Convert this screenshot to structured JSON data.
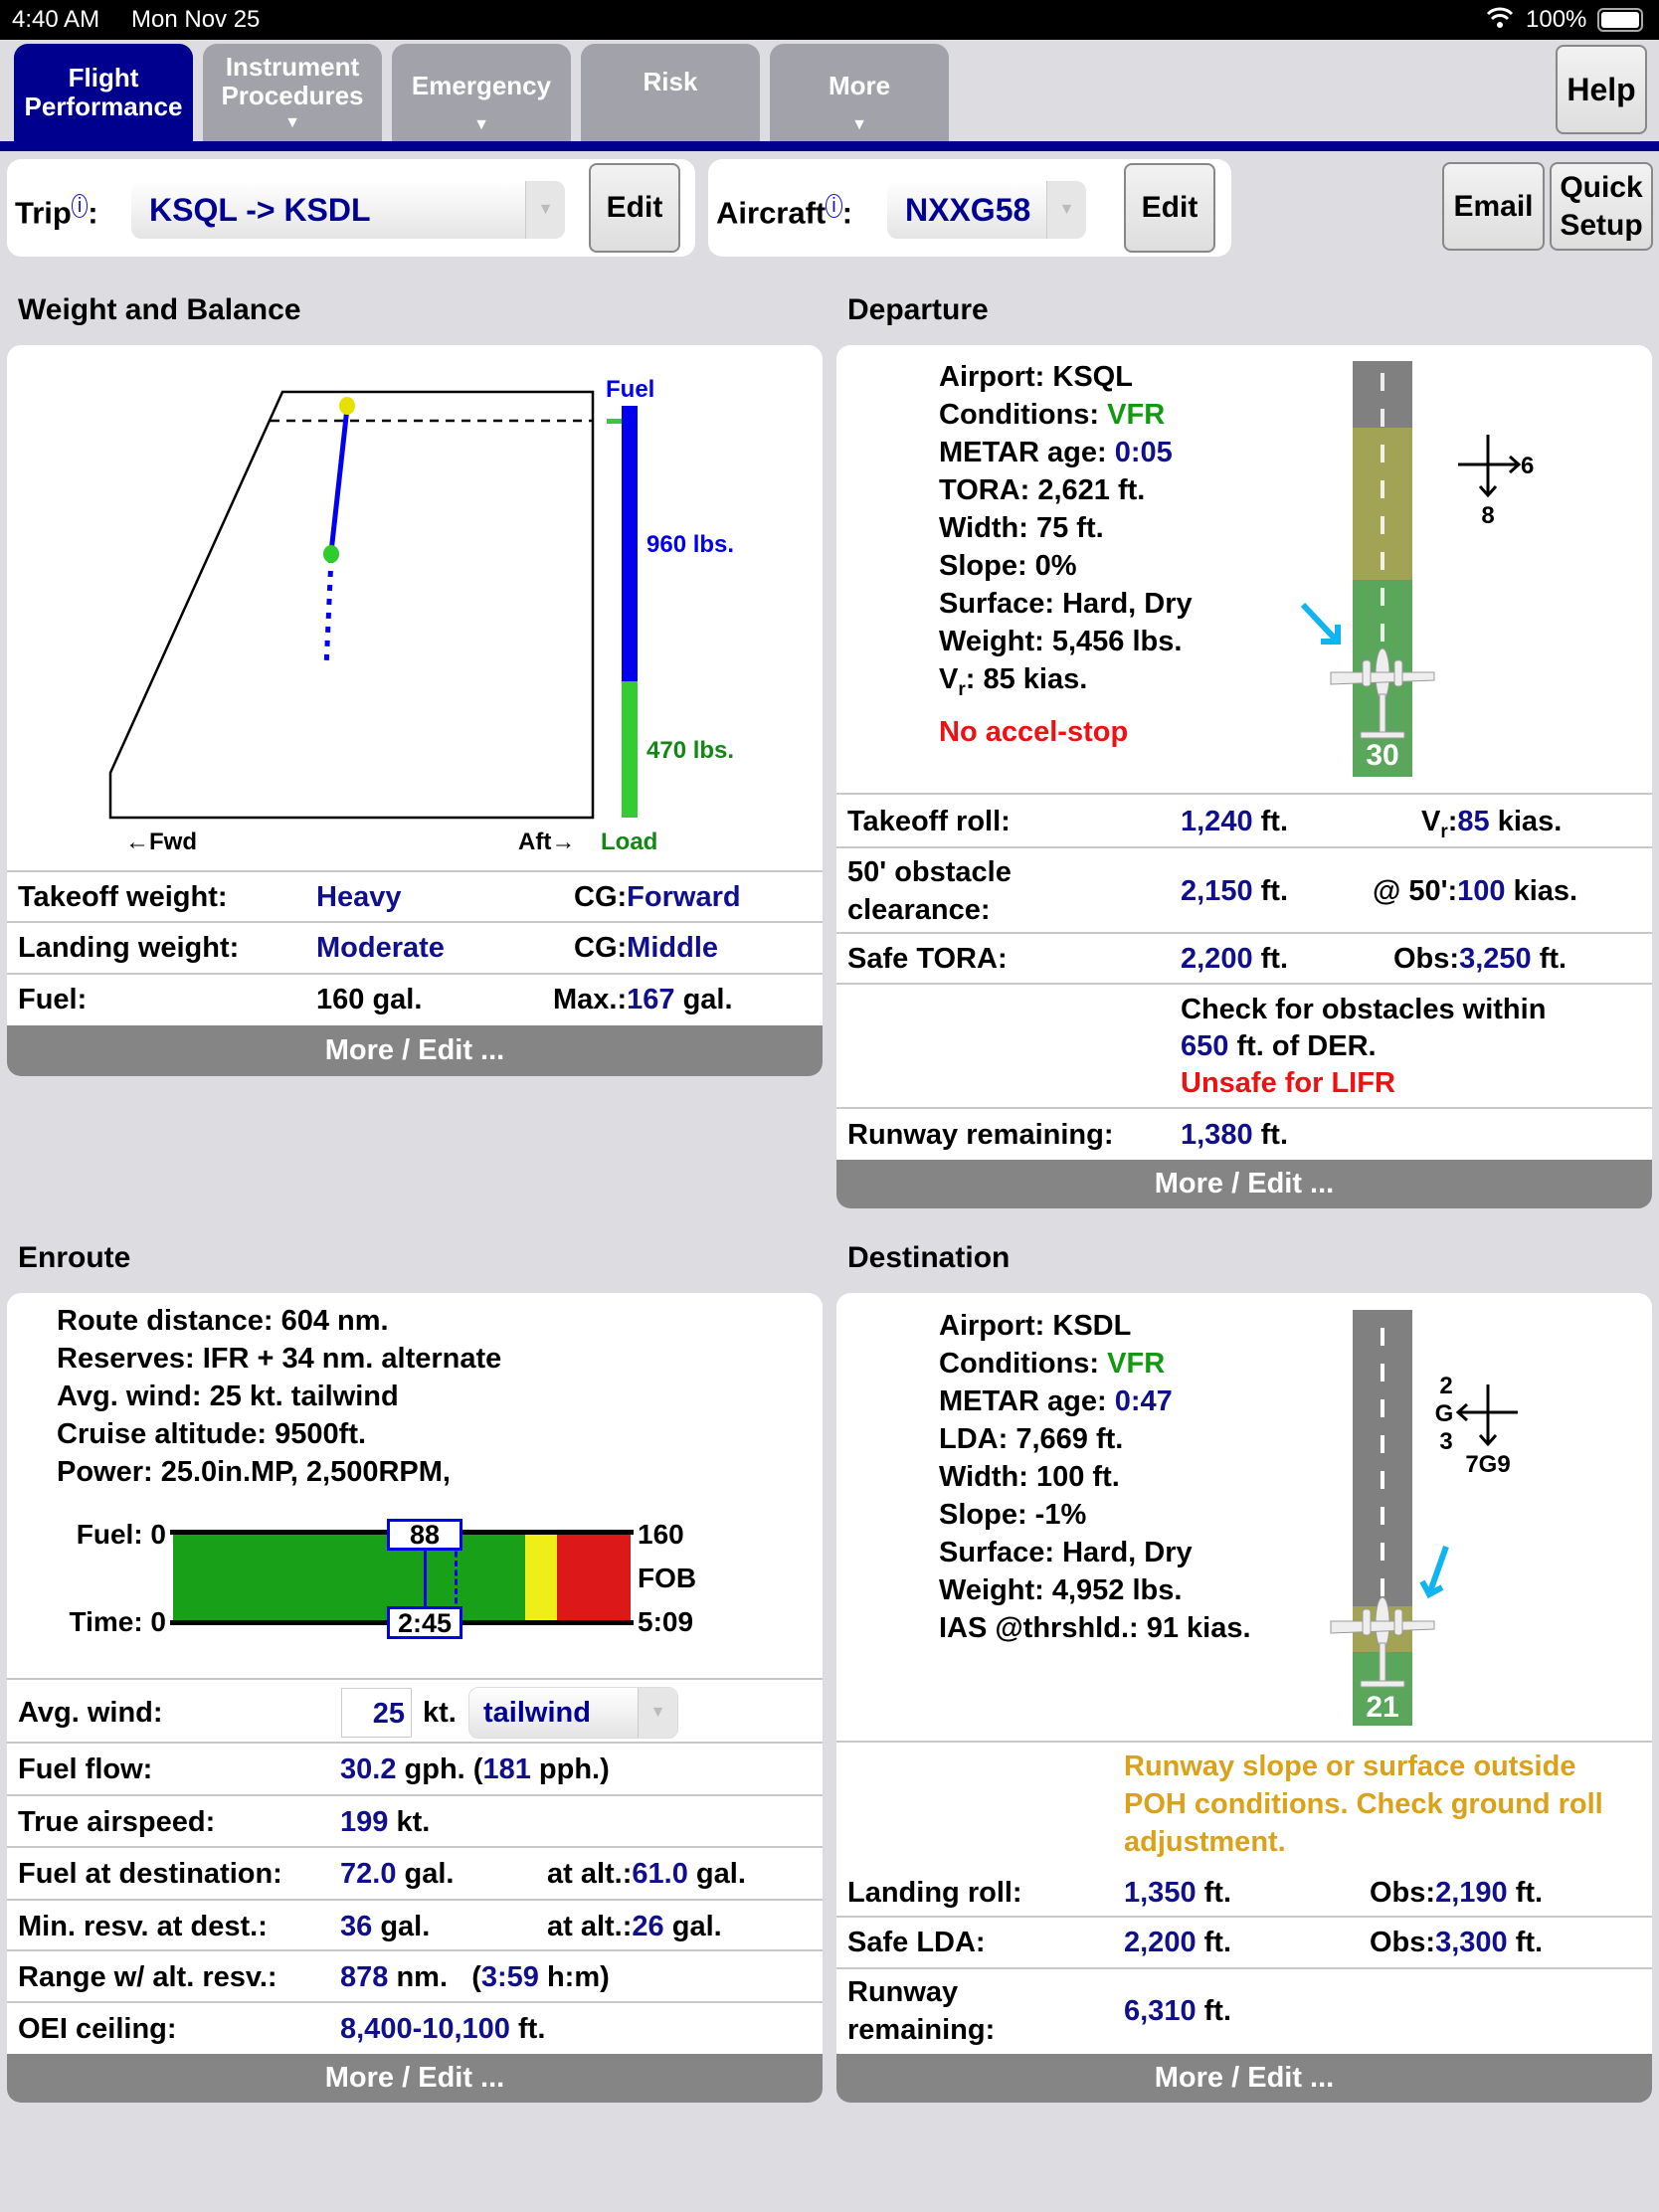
{
  "status_bar": {
    "time": "4:40 AM",
    "date": "Mon Nov 25",
    "battery": "100%"
  },
  "tabs": [
    {
      "line1": "Flight",
      "line2": "Performance",
      "active": true
    },
    {
      "line1": "Instrument",
      "line2": "Procedures",
      "arrow": "▼"
    },
    {
      "line1": "Emergency",
      "arrow": "▼"
    },
    {
      "line1": "Risk"
    },
    {
      "line1": "More",
      "arrow": "▼"
    }
  ],
  "help_label": "Help",
  "trip": {
    "label": "Trip",
    "info": "i",
    "value": "KSQL -> KSDL",
    "edit": "Edit"
  },
  "aircraft": {
    "label": "Aircraft",
    "info": "i",
    "value": "NXXG58",
    "edit": "Edit"
  },
  "email_label": "Email",
  "quick_setup": {
    "line1": "Quick",
    "line2": "Setup"
  },
  "colors": {
    "accent": "#00008e",
    "value": "#10108c",
    "vfr": "#119911",
    "warning": "#ee1111",
    "caution": "#d9a21a"
  },
  "weight_balance": {
    "title": "Weight and Balance",
    "chart": {
      "fuel_label": "Fuel",
      "fuel_weight": "960 lbs.",
      "load_weight": "470 lbs.",
      "fwd": "←Fwd",
      "aft": "Aft→",
      "load_label": "Load"
    },
    "rows": [
      {
        "label": "Takeoff weight:",
        "value": "Heavy",
        "cg_label": "CG:",
        "cg": "Forward"
      },
      {
        "label": "Landing weight:",
        "value": "Moderate",
        "cg_label": "CG:",
        "cg": "Middle"
      },
      {
        "label": "Fuel:",
        "value": "160 gal.",
        "max_label": "Max.:",
        "max": "167",
        "max_unit": "gal."
      }
    ],
    "more": "More / Edit ..."
  },
  "departure": {
    "title": "Departure",
    "lines": {
      "airport": "Airport: KSQL",
      "conditions_label": "Conditions: ",
      "conditions": "VFR",
      "metar_label": "METAR age: ",
      "metar": "0:05",
      "tora": "TORA: 2,621 ft.",
      "width": "Width: 75 ft.",
      "slope": "Slope: 0%",
      "surface": "Surface: Hard, Dry",
      "weight": "Weight: 5,456 lbs.",
      "vr_label": "V",
      "vr_sub": "r",
      "vr": ": 85 kias.",
      "warning": "No accel-stop"
    },
    "runway": {
      "number": "30",
      "wind_cross": "6",
      "wind_head": "8"
    },
    "rows": {
      "takeoff_roll": {
        "label": "Takeoff roll:",
        "value": "1,240",
        "unit": "ft.",
        "vr_label": "V",
        "vr_sub": "r",
        "vr_colon": ":",
        "vr": "85",
        "vr_unit": "kias."
      },
      "obstacle": {
        "label1": "50' obstacle",
        "label2": "clearance:",
        "value": "2,150",
        "unit": "ft.",
        "at_label": "@ 50':",
        "at": "100",
        "at_unit": "kias."
      },
      "safe_tora": {
        "label": "Safe TORA:",
        "value": "2,200",
        "unit": "ft.",
        "obs_label": "Obs:",
        "obs": "3,250",
        "obs_unit": "ft."
      },
      "check": {
        "line1": "Check for obstacles within",
        "dist": "650",
        "line2": "ft. of DER.",
        "warning": "Unsafe for LIFR"
      },
      "runway_remaining": {
        "label": "Runway remaining:",
        "value": "1,380",
        "unit": "ft."
      }
    },
    "more": "More / Edit ..."
  },
  "enroute": {
    "title": "Enroute",
    "lines": [
      "Route distance: 604 nm.",
      "Reserves: IFR + 34 nm. alternate",
      "Avg. wind: 25 kt. tailwind",
      "Cruise altitude: 9500ft.",
      "Power: 25.0in.MP, 2,500RPM,"
    ],
    "fuel_bar": {
      "fuel_label": "Fuel: 0",
      "time_label": "Time: 0",
      "fuel_max": "160",
      "fob": "FOB",
      "time_max": "5:09",
      "fuel_used": "88",
      "time_used": "2:45",
      "fuel_used_fraction": 0.55,
      "caution_start_fraction": 0.77,
      "reserve_start_fraction": 0.84
    },
    "rows": {
      "avg_wind": {
        "label": "Avg. wind:",
        "value": "25",
        "unit": "kt.",
        "direction": "tailwind"
      },
      "fuel_flow": {
        "label": "Fuel flow:",
        "value": "30.2",
        "unit": "gph. (",
        "pph": "181",
        "pph_unit": "pph.)"
      },
      "tas": {
        "label": "True airspeed:",
        "value": "199",
        "unit": "kt."
      },
      "fuel_dest": {
        "label": "Fuel at destination:",
        "value": "72.0",
        "unit": "gal.",
        "alt_label": "at alt.:",
        "alt": "61.0",
        "alt_unit": "gal."
      },
      "min_resv": {
        "label": "Min. resv. at dest.:",
        "value": "36",
        "unit": "gal.",
        "alt_label": "at alt.:",
        "alt": "26",
        "alt_unit": "gal."
      },
      "range": {
        "label": "Range w/ alt. resv.:",
        "value": "878",
        "unit": "nm.",
        "paren_open": "(",
        "time": "3:59",
        "time_unit": "h:m)"
      },
      "oei": {
        "label": "OEI ceiling:",
        "value": "8,400-10,100",
        "unit": "ft."
      }
    },
    "more": "More / Edit ..."
  },
  "destination": {
    "title": "Destination",
    "lines": {
      "airport": "Airport: KSDL",
      "conditions_label": "Conditions: ",
      "conditions": "VFR",
      "metar_label": "METAR age: ",
      "metar": "0:47",
      "lda": "LDA: 7,669 ft.",
      "width": "Width: 100 ft.",
      "slope": "Slope: -1%",
      "surface": "Surface: Hard, Dry",
      "weight": "Weight: 4,952 lbs.",
      "ias": "IAS @thrshld.: 91 kias."
    },
    "runway": {
      "number": "21",
      "wind_cross_1": "2",
      "wind_cross_g": "G",
      "wind_cross_2": "3",
      "wind_head": "7G9"
    },
    "warning": [
      "Runway slope or surface outside",
      "POH conditions. Check ground roll",
      "adjustment."
    ],
    "rows": {
      "landing_roll": {
        "label": "Landing roll:",
        "value": "1,350",
        "unit": "ft.",
        "obs_label": "Obs:",
        "obs": "2,190",
        "obs_unit": "ft."
      },
      "safe_lda": {
        "label": "Safe LDA:",
        "value": "2,200",
        "unit": "ft.",
        "obs_label": "Obs:",
        "obs": "3,300",
        "obs_unit": "ft."
      },
      "runway_remaining": {
        "label1": "Runway",
        "label2": "remaining:",
        "value": "6,310",
        "unit": "ft."
      }
    },
    "more": "More / Edit ..."
  }
}
